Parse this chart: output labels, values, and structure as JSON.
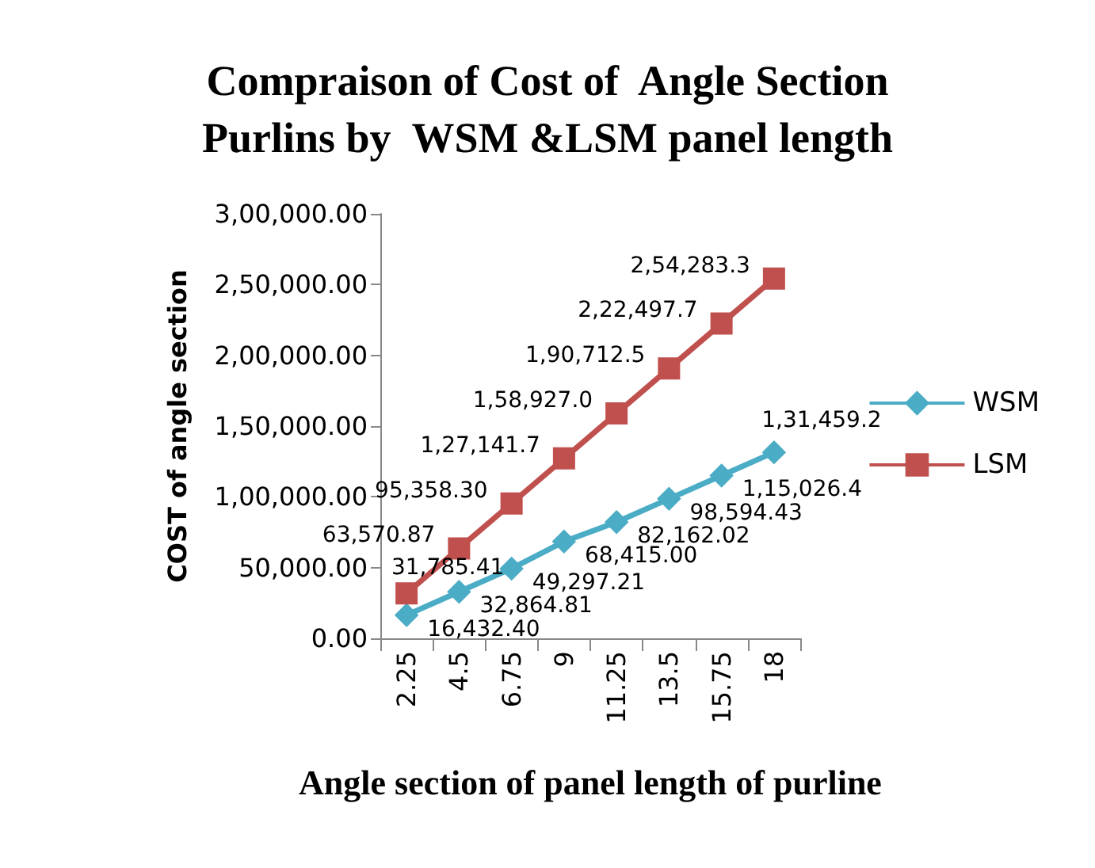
{
  "chart_data": {
    "type": "line",
    "title": "Compraison of Cost of  Angle Section\nPurlins by  WSM &LSM panel length",
    "xlabel": "Angle section of panel length of purline",
    "ylabel": "COST of angle section",
    "categories": [
      "2.25",
      "4.5",
      "6.75",
      "9",
      "11.25",
      "13.5",
      "15.75",
      "18"
    ],
    "series": [
      {
        "name": "WSM",
        "color": "#4bacc6",
        "marker": "diamond",
        "values": [
          16432.4,
          32864.81,
          49297.21,
          68415.0,
          82162.02,
          98594.43,
          115026.4,
          131459.2
        ],
        "value_labels": [
          "16,432.40",
          "32,864.81",
          "49,297.21",
          "68,415.00",
          "82,162.02",
          "98,594.43",
          "1,15,026.4",
          "1,31,459.2"
        ]
      },
      {
        "name": "LSM",
        "color": "#c0504d",
        "marker": "square",
        "values": [
          31785.41,
          63570.87,
          95358.3,
          127141.7,
          158927.0,
          190712.5,
          222497.7,
          254283.3
        ],
        "value_labels": [
          "31,785.41",
          "63,570.87",
          "95,358.30",
          "1,27,141.7",
          "1,58,927.0",
          "1,90,712.5",
          "2,22,497.7",
          "2,54,283.3"
        ]
      }
    ],
    "ylim": [
      0,
      300000
    ],
    "yticks": [
      {
        "value": 0,
        "label": "0.00"
      },
      {
        "value": 50000,
        "label": "50,000.00"
      },
      {
        "value": 100000,
        "label": "1,00,000.00"
      },
      {
        "value": 150000,
        "label": "1,50,000.00"
      },
      {
        "value": 200000,
        "label": "2,00,000.00"
      },
      {
        "value": 250000,
        "label": "2,50,000.00"
      },
      {
        "value": 300000,
        "label": "3,00,000.00"
      }
    ],
    "grid": false,
    "legend": "right"
  }
}
